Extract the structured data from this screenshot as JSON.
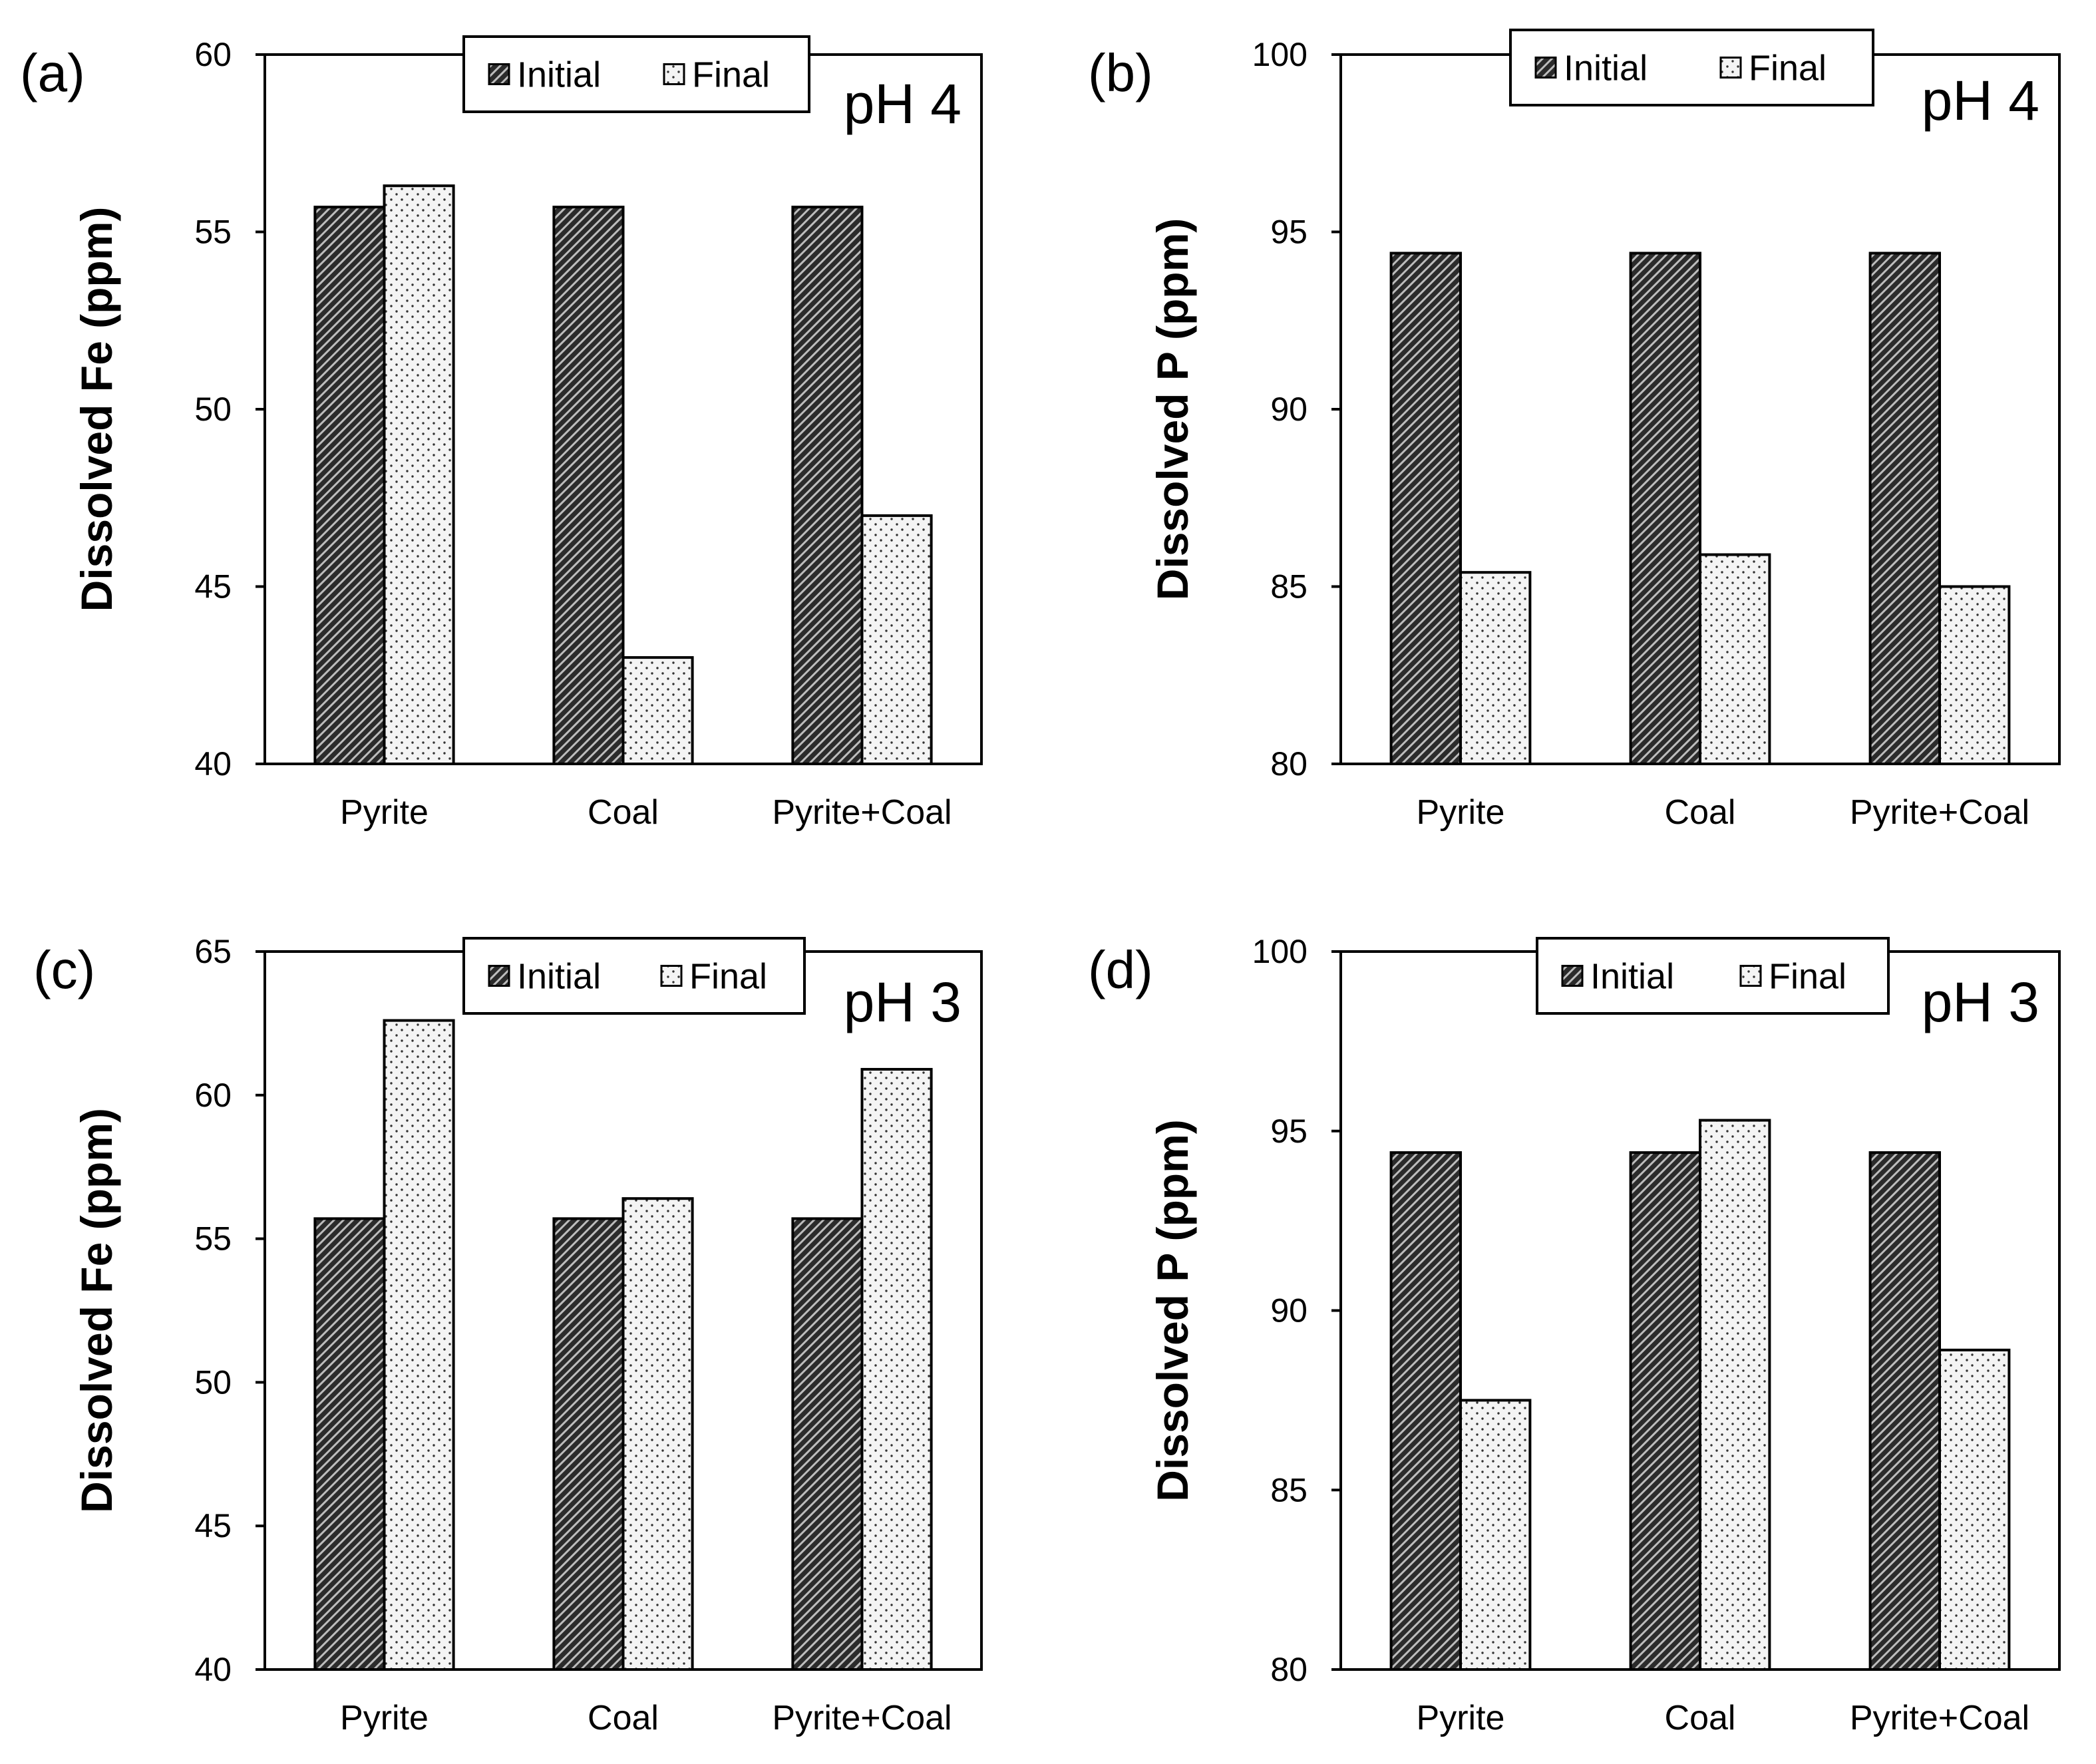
{
  "chart_data": [
    {
      "panel": "(a)",
      "type": "bar",
      "annotation": "pH 4",
      "ylabel": "Dissolved Fe (ppm)",
      "xlabel": "",
      "ylim": [
        40,
        60
      ],
      "yticks": [
        40,
        45,
        50,
        55,
        60
      ],
      "categories": [
        "Pyrite",
        "Coal",
        "Pyrite+Coal"
      ],
      "series": [
        {
          "name": "Initial",
          "values": [
            55.7,
            55.7,
            55.7
          ]
        },
        {
          "name": "Final",
          "values": [
            56.3,
            43.0,
            47.0
          ]
        }
      ],
      "legend": {
        "position": "top-center",
        "items": [
          "Initial",
          "Final"
        ]
      },
      "grid": false
    },
    {
      "panel": "(b)",
      "type": "bar",
      "annotation": "pH 4",
      "ylabel": "Dissolved P (ppm)",
      "xlabel": "",
      "ylim": [
        80,
        100
      ],
      "yticks": [
        80,
        85,
        90,
        95,
        100
      ],
      "categories": [
        "Pyrite",
        "Coal",
        "Pyrite+Coal"
      ],
      "series": [
        {
          "name": "Initial",
          "values": [
            94.4,
            94.4,
            94.4
          ]
        },
        {
          "name": "Final",
          "values": [
            85.4,
            85.9,
            85.0
          ]
        }
      ],
      "legend": {
        "position": "top-center",
        "items": [
          "Initial",
          "Final"
        ]
      },
      "grid": false
    },
    {
      "panel": "(c)",
      "type": "bar",
      "annotation": "pH 3",
      "ylabel": "Dissolved Fe (ppm)",
      "xlabel": "",
      "ylim": [
        40,
        65
      ],
      "yticks": [
        40,
        45,
        50,
        55,
        60,
        65
      ],
      "categories": [
        "Pyrite",
        "Coal",
        "Pyrite+Coal"
      ],
      "series": [
        {
          "name": "Initial",
          "values": [
            55.7,
            55.7,
            55.7
          ]
        },
        {
          "name": "Final",
          "values": [
            62.6,
            56.4,
            60.9
          ]
        }
      ],
      "legend": {
        "position": "top-center",
        "items": [
          "Initial",
          "Final"
        ]
      },
      "grid": false
    },
    {
      "panel": "(d)",
      "type": "bar",
      "annotation": "pH 3",
      "ylabel": "Dissolved P (ppm)",
      "xlabel": "",
      "ylim": [
        80,
        100
      ],
      "yticks": [
        80,
        85,
        90,
        95,
        100
      ],
      "categories": [
        "Pyrite",
        "Coal",
        "Pyrite+Coal"
      ],
      "series": [
        {
          "name": "Initial",
          "values": [
            94.4,
            94.4,
            94.4
          ]
        },
        {
          "name": "Final",
          "values": [
            87.5,
            95.3,
            88.9
          ]
        }
      ],
      "legend": {
        "position": "top-center",
        "items": [
          "Initial",
          "Final"
        ]
      },
      "grid": false
    }
  ],
  "colors": {
    "initial_fill": "#2b2b2b",
    "initial_hatch": "#bfbfbf",
    "final_fill": "#f2f2f2",
    "final_dot": "#333333",
    "axis": "#000000"
  }
}
